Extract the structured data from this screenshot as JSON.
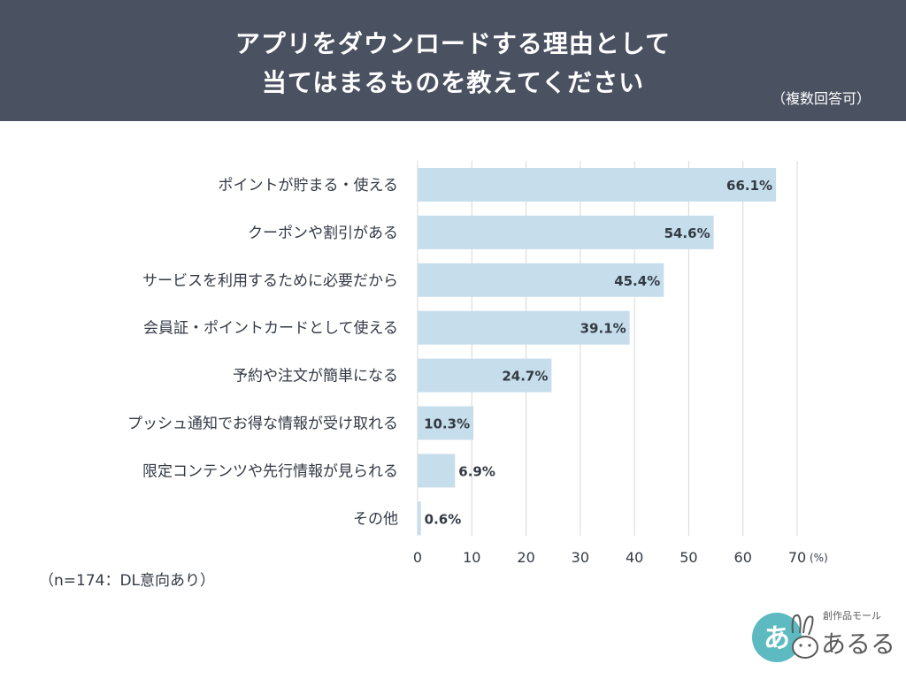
{
  "header": {
    "title_line1": "アプリをダウンロードする理由として",
    "title_line2": "当てはまるものを教えてください",
    "note": "（複数回答可）"
  },
  "footer": {
    "sample": "（n=174：DL意向あり）"
  },
  "logo": {
    "small_text": "創作品モール",
    "main_text": "あるる",
    "mark_text": "あ"
  },
  "colors": {
    "header_bg": "#4a5160",
    "bar": "#c6ddec",
    "grid": "#d8d8d8",
    "text": "#333a44",
    "logo_circle": "#5cbac0"
  },
  "chart_data": {
    "type": "bar",
    "orientation": "horizontal",
    "categories": [
      "ポイントが貯まる・使える",
      "クーポンや割引がある",
      "サービスを利用するために必要だから",
      "会員証・ポイントカードとして使える",
      "予約や注文が簡単になる",
      "プッシュ通知でお得な情報が受け取れる",
      "限定コンテンツや先行情報が見られる",
      "その他"
    ],
    "values": [
      66.1,
      54.6,
      45.4,
      39.1,
      24.7,
      10.3,
      6.9,
      0.6
    ],
    "value_labels": [
      "66.1%",
      "54.6%",
      "45.4%",
      "39.1%",
      "24.7%",
      "10.3%",
      "6.9%",
      "0.6%"
    ],
    "xlim": [
      0,
      70
    ],
    "xticks": [
      0,
      10,
      20,
      30,
      40,
      50,
      60,
      70
    ],
    "xtick_labels": [
      "0",
      "10",
      "20",
      "30",
      "40",
      "50",
      "60",
      "70"
    ],
    "x_unit": "(%)",
    "grid": true
  }
}
